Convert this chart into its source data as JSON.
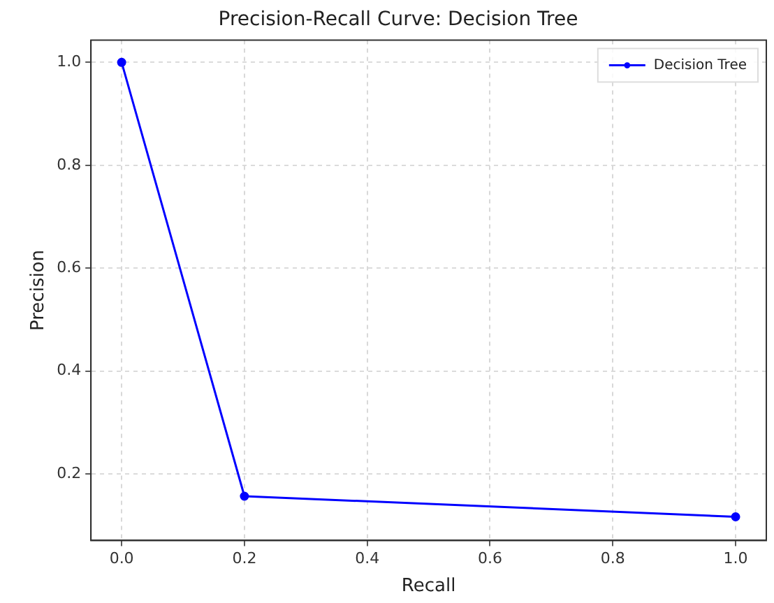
{
  "chart_data": {
    "type": "line",
    "title": "Precision-Recall Curve: Decision Tree",
    "xlabel": "Recall",
    "ylabel": "Precision",
    "x": [
      0.0,
      0.2,
      1.0
    ],
    "series": [
      {
        "name": "Decision Tree",
        "color": "#0000ff",
        "values": [
          1.0,
          0.157,
          0.117
        ]
      }
    ],
    "xlim": [
      -0.05,
      1.05
    ],
    "xticks": [
      {
        "value": 0,
        "label": "0.0"
      },
      0.2,
      0.4,
      0.6,
      0.8,
      {
        "value": 1,
        "label": "1.0"
      }
    ],
    "ylim": [
      0.071,
      1.043
    ],
    "yticks": [
      0.2,
      0.4,
      0.6,
      0.8,
      {
        "value": 1,
        "label": "1.0"
      }
    ],
    "grid": true,
    "legend": "top right",
    "marker": "circle",
    "line_style": "solid"
  }
}
